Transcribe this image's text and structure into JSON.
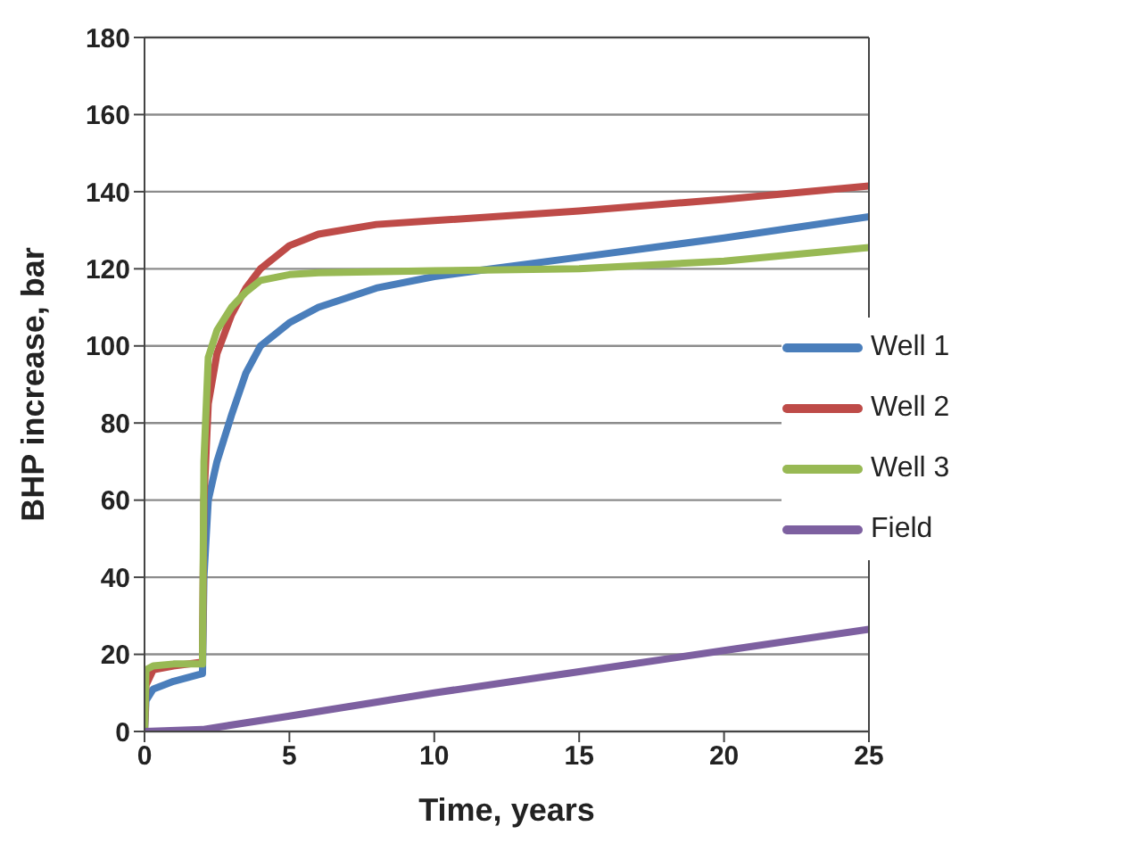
{
  "chart_data": {
    "type": "line",
    "xlabel": "Time, years",
    "ylabel": "BHP increase, bar",
    "xlim": [
      0,
      25
    ],
    "xticks": [
      0,
      5,
      10,
      15,
      20,
      25
    ],
    "ylim": [
      0,
      180
    ],
    "yticks": [
      0,
      20,
      40,
      60,
      80,
      100,
      120,
      140,
      160,
      180
    ],
    "grid": "y",
    "legend": "right",
    "marker": "none",
    "line_style": "solid",
    "series": [
      {
        "name": "Well 1",
        "color": "#4a7ebb",
        "x": [
          0,
          0.05,
          0.3,
          1,
          2,
          2.05,
          2.2,
          2.5,
          3,
          3.5,
          4,
          5,
          6,
          8,
          10,
          12,
          15,
          20,
          25
        ],
        "values": [
          0,
          8,
          11,
          13,
          15,
          40,
          60,
          70,
          82,
          93,
          100,
          106,
          110,
          115,
          118,
          120,
          123,
          128,
          133.5
        ]
      },
      {
        "name": "Well 2",
        "color": "#be4b48",
        "x": [
          0,
          0.05,
          0.3,
          1,
          2,
          2.05,
          2.2,
          2.5,
          3,
          3.5,
          4,
          5,
          6,
          8,
          10,
          15,
          20,
          25
        ],
        "values": [
          0,
          12,
          16,
          17,
          18,
          60,
          85,
          98,
          108,
          115,
          120,
          126,
          129,
          131.5,
          132.5,
          135,
          138,
          141.5
        ]
      },
      {
        "name": "Well 3",
        "color": "#98b954",
        "x": [
          0,
          0.05,
          0.3,
          1,
          2,
          2.05,
          2.2,
          2.5,
          3,
          3.5,
          4,
          5,
          6,
          10,
          15,
          20,
          25
        ],
        "values": [
          0,
          16,
          17,
          17.5,
          17.5,
          70,
          97,
          104,
          110,
          114,
          117,
          118.5,
          119,
          119.5,
          120,
          122,
          125.5
        ]
      },
      {
        "name": "Field",
        "color": "#7d60a0",
        "x": [
          0,
          2,
          5,
          10,
          15,
          20,
          25
        ],
        "values": [
          0,
          0.5,
          4,
          10,
          15.5,
          21,
          26.5
        ]
      }
    ]
  }
}
